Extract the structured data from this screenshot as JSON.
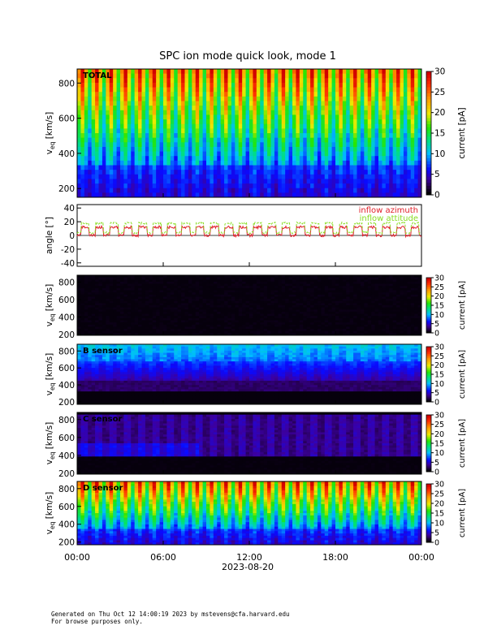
{
  "title": "SPC ion mode quick look, mode 1",
  "colors": {
    "azimuth": "#e0202a",
    "attitude": "#88dd22",
    "background": "#ffffff"
  },
  "x_axis": {
    "ticks": [
      "00:00",
      "06:00",
      "12:00",
      "18:00",
      "00:00"
    ],
    "date_label": "2023-08-20"
  },
  "footer": {
    "line1": "Generated on Thu Oct 12 14:00:19 2023 by mstevens@cfa.harvard.edu",
    "line2": "For browse purposes only."
  },
  "chart_data": [
    {
      "type": "heatmap",
      "id": "total",
      "panel_label": "TOTAL",
      "ylabel_main": "v",
      "ylabel_sub": "eq",
      "ylabel_unit": " [km/s]",
      "yticks": [
        "200",
        "400",
        "600",
        "800"
      ],
      "ylim": [
        150,
        880
      ],
      "colorbar": {
        "label": "current [pA]",
        "ticks": [
          "0",
          "5",
          "10",
          "15",
          "20",
          "25",
          "30"
        ],
        "range": [
          0,
          30
        ]
      },
      "pattern": "periodic_strong",
      "cycles": 24
    },
    {
      "type": "line",
      "id": "angle",
      "ylabel": "angle [°]",
      "yticks": [
        "-40",
        "-20",
        "0",
        "20",
        "40"
      ],
      "ylim": [
        -45,
        45
      ],
      "series": [
        {
          "name": "inflow azimuth",
          "color": "#e0202a",
          "pattern": "steps_low_high",
          "low": 0,
          "high": 12
        },
        {
          "name": "inflow attitude",
          "color": "#88dd22",
          "pattern": "steps_low_high",
          "low": 4,
          "high": 18
        }
      ],
      "legend_position": "top-right",
      "cycles": 24
    },
    {
      "type": "heatmap",
      "id": "A",
      "panel_label": "",
      "ylabel_main": "v",
      "ylabel_sub": "eq",
      "ylabel_unit": " [km/s]",
      "yticks": [
        "200",
        "400",
        "600",
        "800"
      ],
      "ylim": [
        190,
        880
      ],
      "colorbar": {
        "label": "current [pA]",
        "ticks": [
          "0",
          "5",
          "10",
          "15",
          "20",
          "25",
          "30"
        ],
        "range": [
          0,
          30
        ]
      },
      "pattern": "dark"
    },
    {
      "type": "heatmap",
      "id": "B",
      "panel_label": "B sensor",
      "ylabel_main": "v",
      "ylabel_sub": "eq",
      "ylabel_unit": " [km/s]",
      "yticks": [
        "200",
        "400",
        "600",
        "800"
      ],
      "ylim": [
        170,
        880
      ],
      "colorbar": {
        "label": "current [pA]",
        "ticks": [
          "0",
          "5",
          "10",
          "15",
          "20",
          "25",
          "30"
        ],
        "range": [
          0,
          30
        ]
      },
      "pattern": "band_high"
    },
    {
      "type": "heatmap",
      "id": "C",
      "panel_label": "C sensor",
      "ylabel_main": "v",
      "ylabel_sub": "eq",
      "ylabel_unit": " [km/s]",
      "yticks": [
        "200",
        "400",
        "600",
        "800"
      ],
      "ylim": [
        190,
        880
      ],
      "colorbar": {
        "label": "current [pA]",
        "ticks": [
          "0",
          "5",
          "10",
          "15",
          "20",
          "25",
          "30"
        ],
        "range": [
          0,
          30
        ]
      },
      "pattern": "band_mid"
    },
    {
      "type": "heatmap",
      "id": "D",
      "panel_label": "D sensor",
      "ylabel_main": "v",
      "ylabel_sub": "eq",
      "ylabel_unit": " [km/s]",
      "yticks": [
        "200",
        "400",
        "600",
        "800"
      ],
      "ylim": [
        170,
        880
      ],
      "colorbar": {
        "label": "current [pA]",
        "ticks": [
          "0",
          "5",
          "10",
          "15",
          "20",
          "25",
          "30"
        ],
        "range": [
          0,
          30
        ]
      },
      "pattern": "periodic_strong",
      "cycles": 24
    }
  ]
}
